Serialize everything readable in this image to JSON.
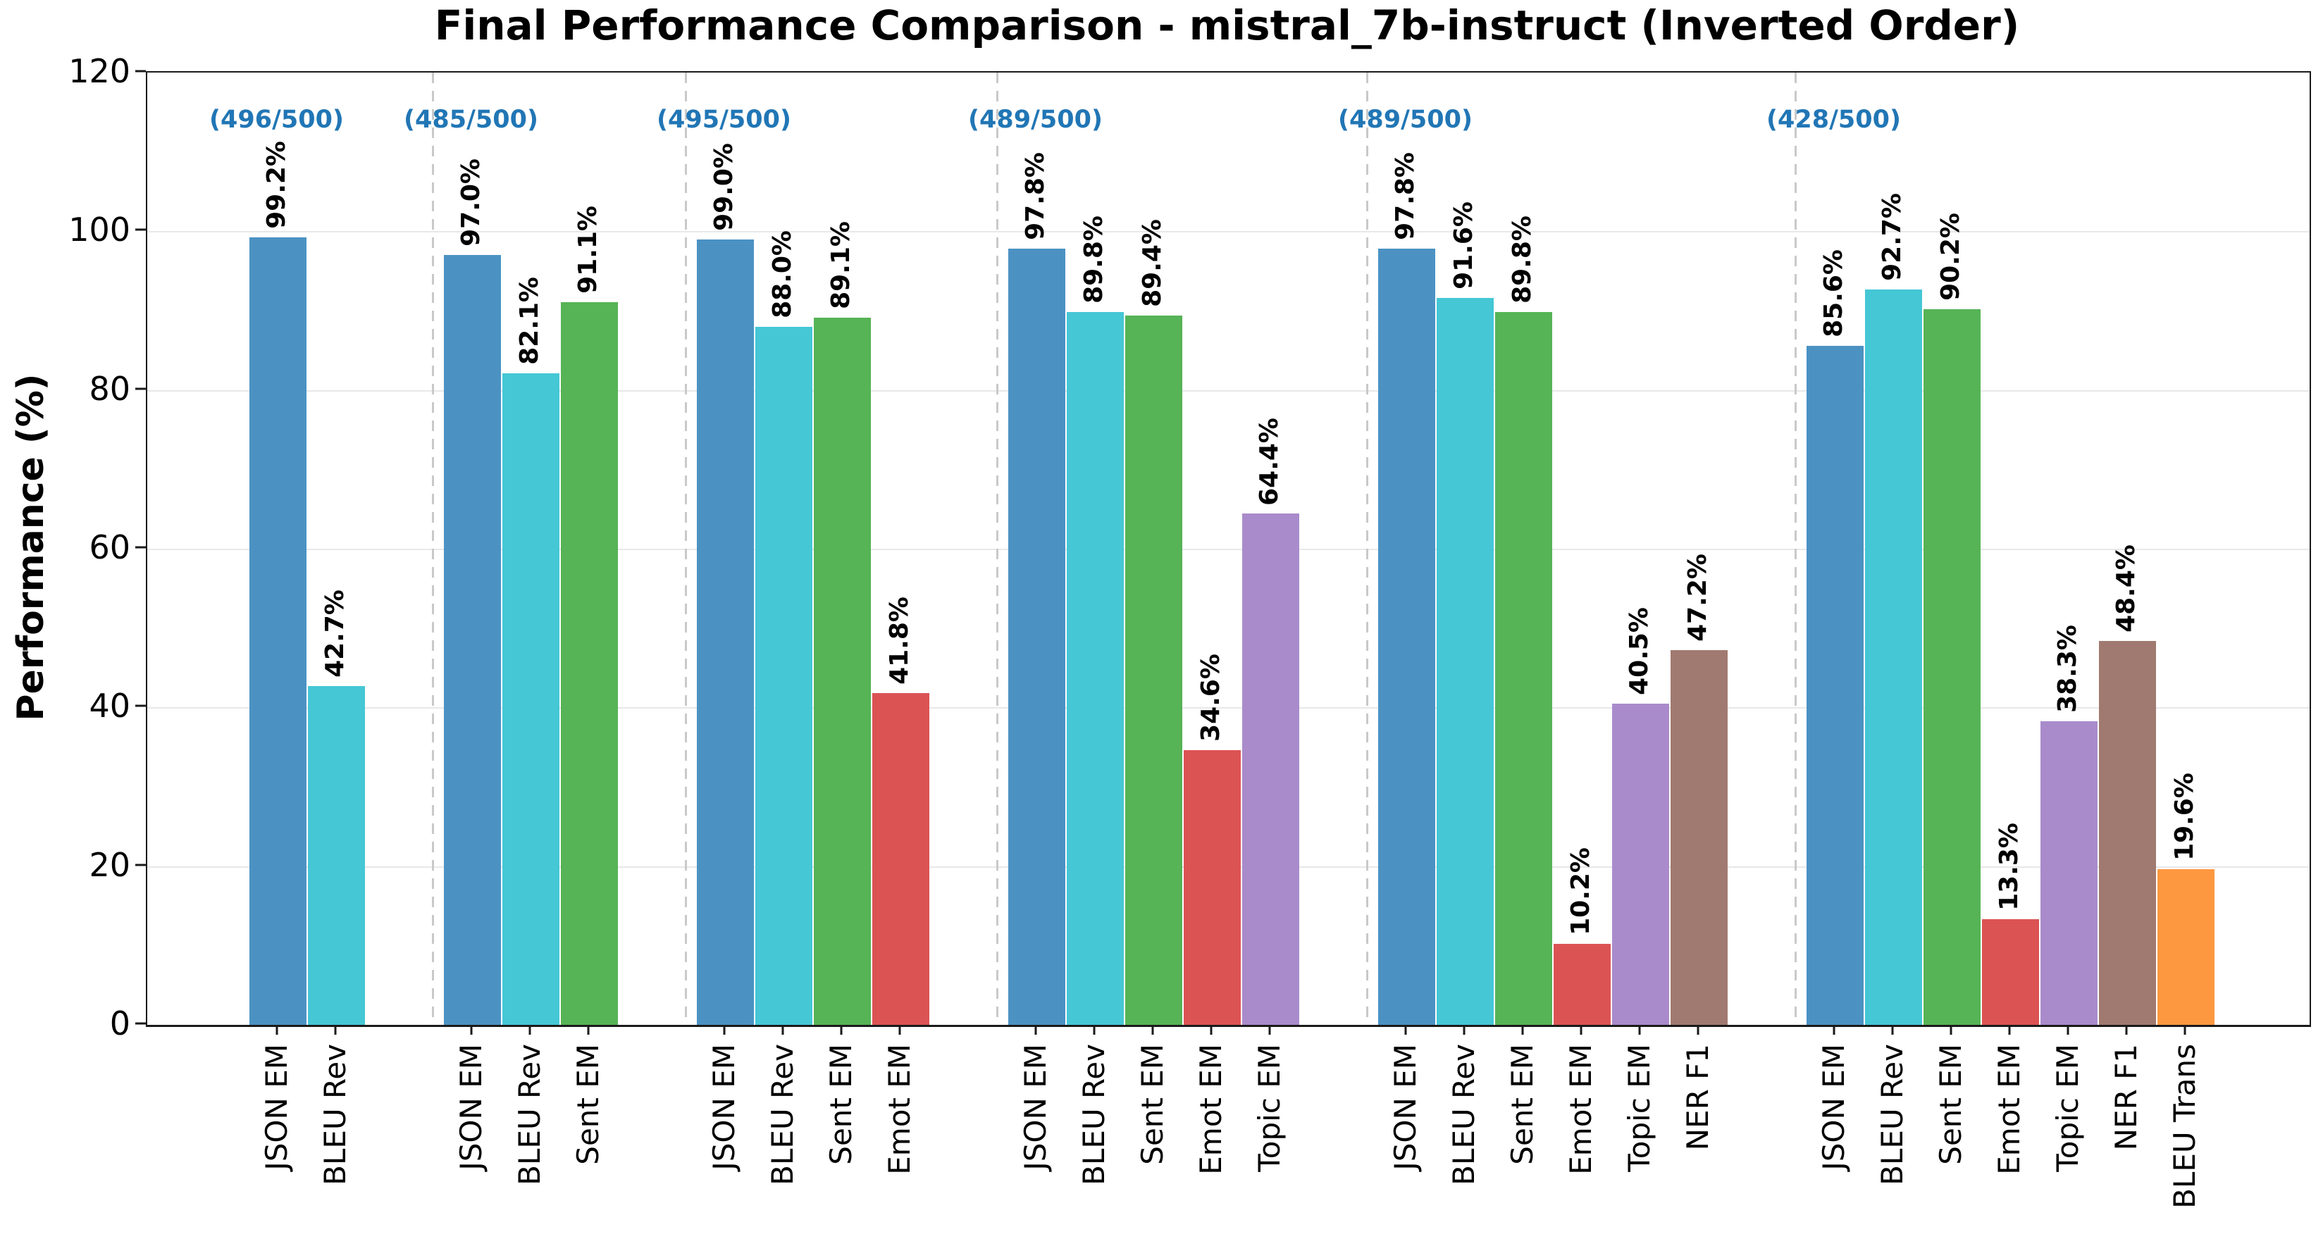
{
  "title": "Final Performance Comparison - mistral_7b-instruct (Inverted Order)",
  "annotation_color": "#2176b5",
  "chart_data": {
    "type": "bar",
    "title": "Final Performance Comparison - mistral_7b-instruct (Inverted Order)",
    "xlabel": "",
    "ylabel": "Performance (%)",
    "ylim": [
      0,
      120
    ],
    "y_ticks": [
      0,
      20,
      40,
      60,
      80,
      100,
      120
    ],
    "grid": "horizontal",
    "legend": "none",
    "bar_label_format": "value + %, rotated 90",
    "palette": {
      "JSON EM": "#4b92c3",
      "BLEU Rev": "#45c7d5",
      "Sent EM": "#56b356",
      "Emot EM": "#dc5354",
      "Topic EM": "#a98bcb",
      "NER F1": "#a07a70",
      "BLEU Trans": "#fe9840"
    },
    "groups": [
      {
        "count_label": "(496/500)",
        "bars": [
          {
            "metric": "JSON EM",
            "value": 99.2,
            "label": "99.2%"
          },
          {
            "metric": "BLEU Rev",
            "value": 42.7,
            "label": "42.7%"
          }
        ]
      },
      {
        "count_label": "(485/500)",
        "bars": [
          {
            "metric": "JSON EM",
            "value": 97.0,
            "label": "97.0%"
          },
          {
            "metric": "BLEU Rev",
            "value": 82.1,
            "label": "82.1%"
          },
          {
            "metric": "Sent EM",
            "value": 91.1,
            "label": "91.1%"
          }
        ]
      },
      {
        "count_label": "(495/500)",
        "bars": [
          {
            "metric": "JSON EM",
            "value": 99.0,
            "label": "99.0%"
          },
          {
            "metric": "BLEU Rev",
            "value": 88.0,
            "label": "88.0%"
          },
          {
            "metric": "Sent EM",
            "value": 89.1,
            "label": "89.1%"
          },
          {
            "metric": "Emot EM",
            "value": 41.8,
            "label": "41.8%"
          }
        ]
      },
      {
        "count_label": "(489/500)",
        "bars": [
          {
            "metric": "JSON EM",
            "value": 97.8,
            "label": "97.8%"
          },
          {
            "metric": "BLEU Rev",
            "value": 89.8,
            "label": "89.8%"
          },
          {
            "metric": "Sent EM",
            "value": 89.4,
            "label": "89.4%"
          },
          {
            "metric": "Emot EM",
            "value": 34.6,
            "label": "34.6%"
          },
          {
            "metric": "Topic EM",
            "value": 64.4,
            "label": "64.4%"
          }
        ]
      },
      {
        "count_label": "(489/500)",
        "bars": [
          {
            "metric": "JSON EM",
            "value": 97.8,
            "label": "97.8%"
          },
          {
            "metric": "BLEU Rev",
            "value": 91.6,
            "label": "91.6%"
          },
          {
            "metric": "Sent EM",
            "value": 89.8,
            "label": "89.8%"
          },
          {
            "metric": "Emot EM",
            "value": 10.2,
            "label": "10.2%"
          },
          {
            "metric": "Topic EM",
            "value": 40.5,
            "label": "40.5%"
          },
          {
            "metric": "NER F1",
            "value": 47.2,
            "label": "47.2%"
          }
        ]
      },
      {
        "count_label": "(428/500)",
        "bars": [
          {
            "metric": "JSON EM",
            "value": 85.6,
            "label": "85.6%"
          },
          {
            "metric": "BLEU Rev",
            "value": 92.7,
            "label": "92.7%"
          },
          {
            "metric": "Sent EM",
            "value": 90.2,
            "label": "90.2%"
          },
          {
            "metric": "Emot EM",
            "value": 13.3,
            "label": "13.3%"
          },
          {
            "metric": "Topic EM",
            "value": 38.3,
            "label": "38.3%"
          },
          {
            "metric": "NER F1",
            "value": 48.4,
            "label": "48.4%"
          },
          {
            "metric": "BLEU Trans",
            "value": 19.6,
            "label": "19.6%"
          }
        ]
      }
    ]
  }
}
